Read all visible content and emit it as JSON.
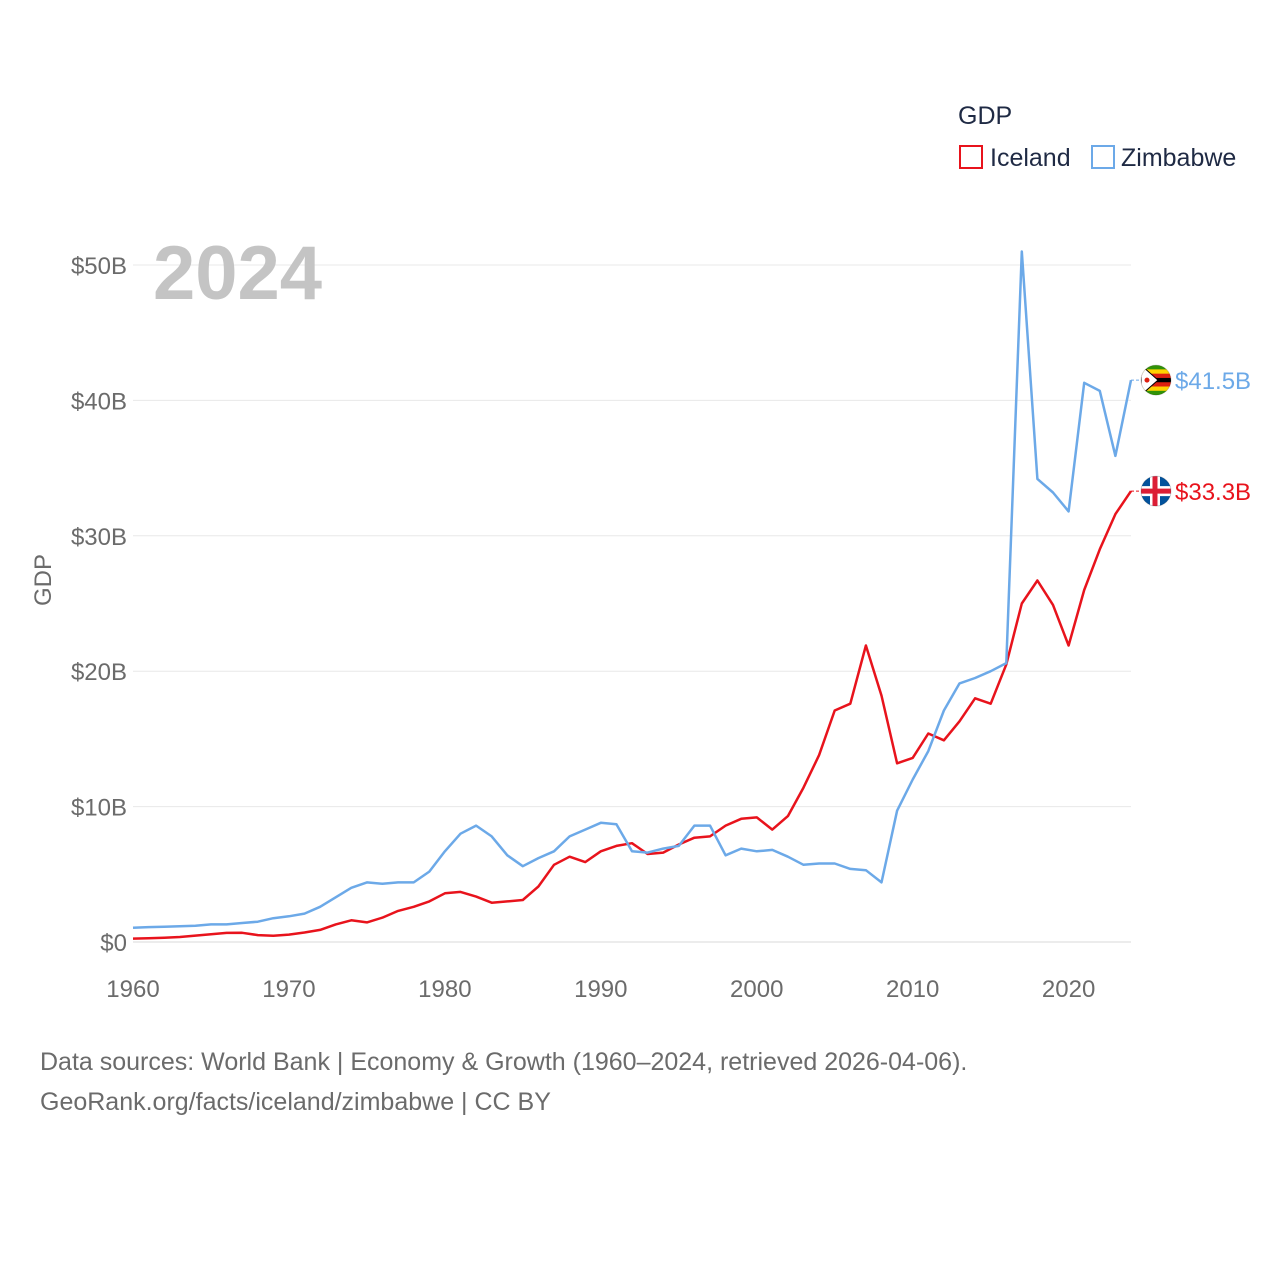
{
  "chart_data": {
    "type": "line",
    "title": "",
    "year_watermark": "2024",
    "xlabel": "",
    "ylabel": "GDP",
    "xlim": [
      1960,
      2024
    ],
    "ylim": [
      0,
      50
    ],
    "y_unit": "billion USD",
    "x_ticks": [
      1960,
      1970,
      1980,
      1990,
      2000,
      2010,
      2020
    ],
    "y_ticks": [
      {
        "value": 0,
        "label": "$0"
      },
      {
        "value": 10,
        "label": "$10B"
      },
      {
        "value": 20,
        "label": "$20B"
      },
      {
        "value": 30,
        "label": "$30B"
      },
      {
        "value": 40,
        "label": "$40B"
      },
      {
        "value": 50,
        "label": "$50B"
      }
    ],
    "grid": true,
    "legend": {
      "title": "GDP",
      "position": "top-right",
      "entries": [
        "Iceland",
        "Zimbabwe"
      ]
    },
    "x": [
      1960,
      1961,
      1962,
      1963,
      1964,
      1965,
      1966,
      1967,
      1968,
      1969,
      1970,
      1971,
      1972,
      1973,
      1974,
      1975,
      1976,
      1977,
      1978,
      1979,
      1980,
      1981,
      1982,
      1983,
      1984,
      1985,
      1986,
      1987,
      1988,
      1989,
      1990,
      1991,
      1992,
      1993,
      1994,
      1995,
      1996,
      1997,
      1998,
      1999,
      2000,
      2001,
      2002,
      2003,
      2004,
      2005,
      2006,
      2007,
      2008,
      2009,
      2010,
      2011,
      2012,
      2013,
      2014,
      2015,
      2016,
      2017,
      2018,
      2019,
      2020,
      2021,
      2022,
      2023,
      2024
    ],
    "series": [
      {
        "name": "Iceland",
        "color": "#e8131c",
        "flag": "iceland-flag",
        "end_label": "$33.3B",
        "values": [
          0.25,
          0.27,
          0.31,
          0.37,
          0.47,
          0.57,
          0.67,
          0.68,
          0.51,
          0.46,
          0.55,
          0.7,
          0.89,
          1.3,
          1.6,
          1.45,
          1.8,
          2.3,
          2.6,
          3.0,
          3.6,
          3.7,
          3.35,
          2.9,
          3.0,
          3.1,
          4.1,
          5.7,
          6.3,
          5.9,
          6.7,
          7.1,
          7.3,
          6.5,
          6.6,
          7.2,
          7.7,
          7.8,
          8.6,
          9.1,
          9.2,
          8.3,
          9.3,
          11.4,
          13.8,
          17.1,
          17.6,
          21.9,
          18.2,
          13.2,
          13.6,
          15.4,
          14.9,
          16.3,
          18.0,
          17.6,
          20.5,
          25.0,
          26.7,
          24.9,
          21.9,
          26.0,
          29.0,
          31.6,
          33.3
        ]
      },
      {
        "name": "Zimbabwe",
        "color": "#6ca9e8",
        "flag": "zimbabwe-flag",
        "end_label": "$41.5B",
        "values": [
          1.05,
          1.1,
          1.12,
          1.16,
          1.2,
          1.3,
          1.3,
          1.4,
          1.5,
          1.76,
          1.9,
          2.1,
          2.6,
          3.3,
          4.0,
          4.4,
          4.3,
          4.4,
          4.4,
          5.2,
          6.7,
          8.0,
          8.6,
          7.8,
          6.4,
          5.6,
          6.2,
          6.7,
          7.8,
          8.3,
          8.8,
          8.7,
          6.7,
          6.6,
          6.9,
          7.1,
          8.6,
          8.6,
          6.4,
          6.9,
          6.7,
          6.8,
          6.3,
          5.7,
          5.8,
          5.8,
          5.4,
          5.3,
          4.4,
          9.7,
          12.0,
          14.1,
          17.1,
          19.1,
          19.5,
          20.0,
          20.6,
          51.0,
          34.2,
          33.2,
          31.8,
          41.3,
          40.7,
          35.9,
          41.5
        ]
      }
    ],
    "footer": {
      "line1": "Data sources: World Bank | Economy & Growth (1960–2024, retrieved 2026-04-06).",
      "line2": "GeoRank.org/facts/iceland/zimbabwe | CC BY"
    }
  }
}
